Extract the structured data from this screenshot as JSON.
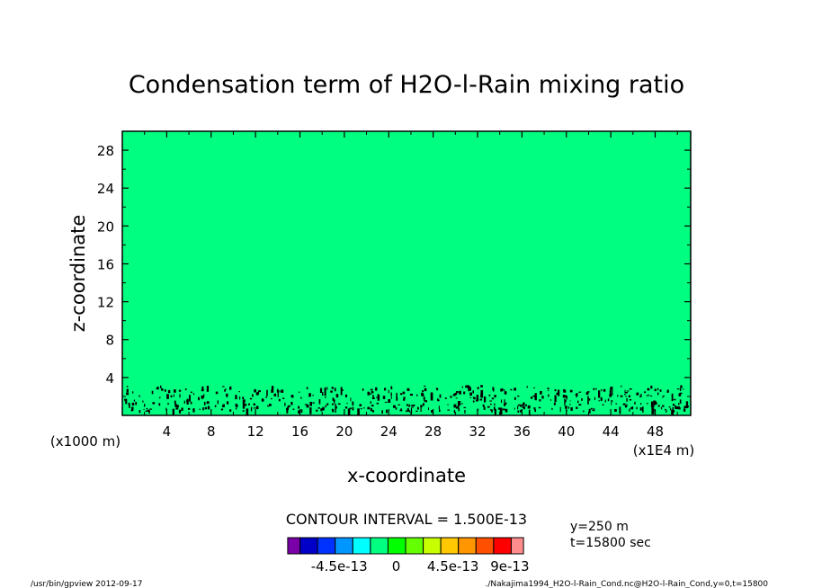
{
  "chart_data": {
    "type": "heatmap",
    "title": "Condensation term of H2O-l-Rain mixing ratio",
    "xlabel": "x-coordinate",
    "ylabel": "z-coordinate",
    "x_unit": "(x1E4 m)",
    "z_unit": "(x1000 m)",
    "xlim": [
      0,
      51.2
    ],
    "ylim": [
      0,
      30
    ],
    "x_ticks": [
      4,
      8,
      12,
      16,
      20,
      24,
      28,
      32,
      36,
      40,
      44,
      48
    ],
    "y_ticks": [
      4,
      8,
      12,
      16,
      20,
      24,
      28
    ],
    "background_value": 0,
    "contour_interval_label": "CONTOUR INTERVAL = 1.500E-13",
    "info_lines": [
      "y=250 m",
      "t=15800 sec"
    ],
    "colorbar": {
      "colors": [
        "#7a00a8",
        "#0000c8",
        "#0032ff",
        "#0096ff",
        "#00ffff",
        "#00ff80",
        "#00ff00",
        "#64ff00",
        "#c8ff00",
        "#ffc800",
        "#ff9600",
        "#ff5000",
        "#ff0000",
        "#ff8c8c"
      ],
      "labels": [
        "-4.5e-13",
        "0",
        "4.5e-13",
        "9e-13"
      ],
      "label_positions": [
        -4.5e-13,
        0,
        4.5e-13,
        9e-13
      ],
      "min": -9e-13,
      "max": 1.05e-12
    },
    "feature_band_z": [
      0.3,
      3.8
    ]
  },
  "footer": {
    "left": "/usr/bin/gpview  2012-09-17",
    "right": "./Nakajima1994_H2O-l-Rain_Cond.nc@H2O-l-Rain_Cond,y=0,t=15800"
  },
  "colors": {
    "field": "#00ff80",
    "frame": "#000000"
  }
}
